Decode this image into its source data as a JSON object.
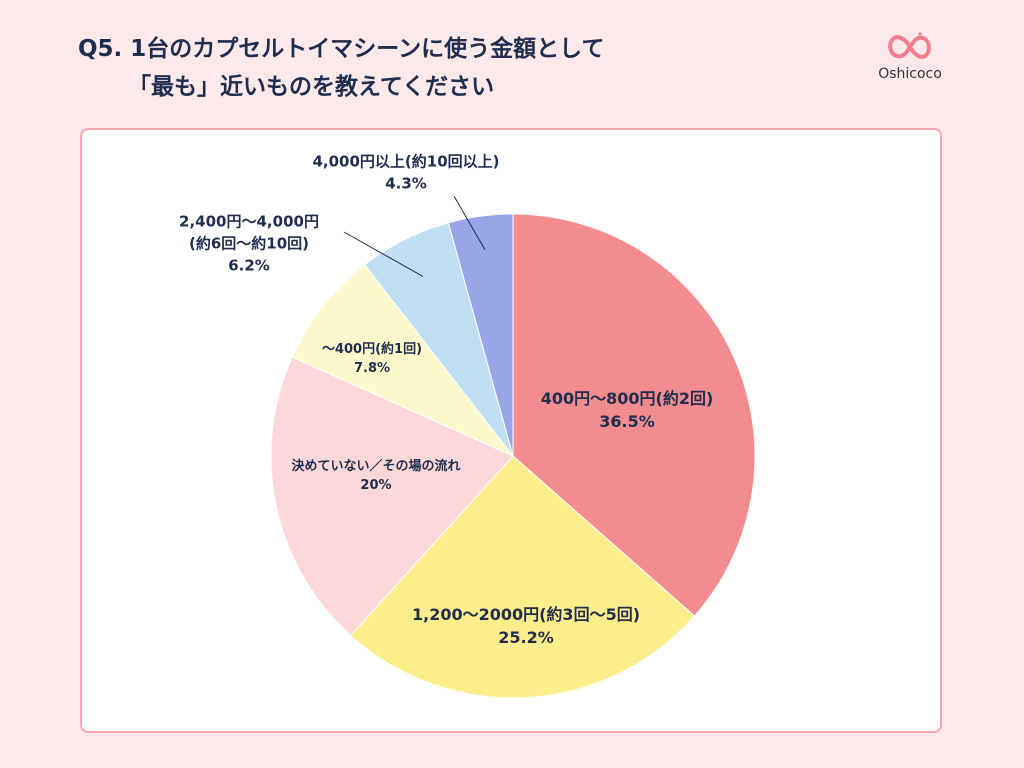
{
  "header": {
    "title_line1": "Q5. 1台のカプセルトイマシーンに使う金額として",
    "title_line2": "「最も」近いものを教えてください"
  },
  "brand": {
    "name": "Oshicoco",
    "logo_icon": "infinity-heart-logo-icon",
    "color": "#f27d8c"
  },
  "chart_data": {
    "type": "pie",
    "title": "Q5. 1台のカプセルトイマシーンに使う金額として「最も」近いものを教えてください",
    "start": "12 o'clock, clockwise",
    "slices": [
      {
        "id": "s1",
        "name": "400円〜800円(約2回)",
        "name_lines": [
          "400円〜800円(約2回)"
        ],
        "pct_label": "36.5%",
        "value": 36.5,
        "color": "#f38c8f"
      },
      {
        "id": "s2",
        "name": "1,200〜2000円(約3回〜5回)",
        "name_lines": [
          "1,200〜2000円(約3回〜5回)"
        ],
        "pct_label": "25.2%",
        "value": 25.2,
        "color": "#fdee8c"
      },
      {
        "id": "s3",
        "name": "決めていない／その場の流れ",
        "name_lines": [
          "決めていない／その場の流れ"
        ],
        "pct_label": "20%",
        "value": 20,
        "color": "#fdd8d8"
      },
      {
        "id": "s4",
        "name": "〜400円(約1回)",
        "name_lines": [
          "〜400円(約1回)"
        ],
        "pct_label": "7.8%",
        "value": 7.8,
        "color": "#fef8cd"
      },
      {
        "id": "s5",
        "name": "2,400円〜4,000円(約6回〜約10回)",
        "name_lines": [
          "2,400円〜4,000円",
          "(約6回〜約10回)"
        ],
        "pct_label": "6.2%",
        "value": 6.2,
        "color": "#c1dff4"
      },
      {
        "id": "s6",
        "name": "4,000円以上(約10回以上)",
        "name_lines": [
          "4,000円以上(約10回以上)"
        ],
        "pct_label": "4.3%",
        "value": 4.3,
        "color": "#98a5e8"
      }
    ]
  }
}
